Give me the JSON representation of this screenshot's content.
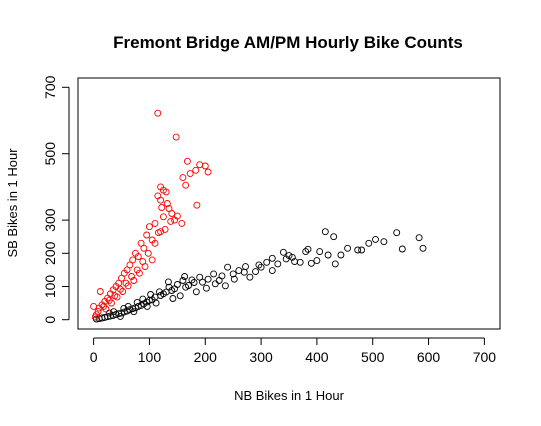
{
  "chart_data": {
    "type": "scatter",
    "title": "Fremont Bridge AM/PM Hourly Bike Counts",
    "xlabel": "NB Bikes in 1 Hour",
    "ylabel": "SB Bikes in 1 Hour",
    "xlim": [
      -28,
      728
    ],
    "ylim": [
      -28,
      728
    ],
    "xticks": [
      0,
      100,
      200,
      300,
      400,
      500,
      600,
      700
    ],
    "yticks": [
      0,
      100,
      200,
      300,
      500,
      700
    ],
    "grid": false,
    "legend": "none",
    "series": [
      {
        "color": "#000000",
        "points": [
          [
            590,
            215
          ],
          [
            583,
            247
          ],
          [
            553,
            213
          ],
          [
            543,
            262
          ],
          [
            520,
            235
          ],
          [
            505,
            242
          ],
          [
            493,
            230
          ],
          [
            480,
            210
          ],
          [
            473,
            210
          ],
          [
            455,
            215
          ],
          [
            443,
            195
          ],
          [
            433,
            168
          ],
          [
            430,
            250
          ],
          [
            420,
            195
          ],
          [
            405,
            205
          ],
          [
            400,
            178
          ],
          [
            390,
            170
          ],
          [
            380,
            205
          ],
          [
            370,
            173
          ],
          [
            360,
            175
          ],
          [
            350,
            193
          ],
          [
            345,
            183
          ],
          [
            340,
            203
          ],
          [
            330,
            168
          ],
          [
            320,
            148
          ],
          [
            310,
            173
          ],
          [
            300,
            158
          ],
          [
            290,
            145
          ],
          [
            280,
            128
          ],
          [
            270,
            143
          ],
          [
            260,
            148
          ],
          [
            250,
            138
          ],
          [
            240,
            158
          ],
          [
            230,
            132
          ],
          [
            225,
            118
          ],
          [
            215,
            138
          ],
          [
            205,
            122
          ],
          [
            195,
            113
          ],
          [
            190,
            128
          ],
          [
            180,
            112
          ],
          [
            170,
            103
          ],
          [
            165,
            98
          ],
          [
            160,
            118
          ],
          [
            150,
            106
          ],
          [
            145,
            93
          ],
          [
            140,
            88
          ],
          [
            135,
            98
          ],
          [
            130,
            83
          ],
          [
            125,
            78
          ],
          [
            120,
            73
          ],
          [
            110,
            68
          ],
          [
            105,
            60
          ],
          [
            100,
            58
          ],
          [
            95,
            53
          ],
          [
            90,
            48
          ],
          [
            85,
            43
          ],
          [
            80,
            40
          ],
          [
            75,
            36
          ],
          [
            70,
            33
          ],
          [
            65,
            30
          ],
          [
            60,
            26
          ],
          [
            55,
            23
          ],
          [
            50,
            20
          ],
          [
            45,
            18
          ],
          [
            40,
            16
          ],
          [
            35,
            13
          ],
          [
            30,
            11
          ],
          [
            25,
            9
          ],
          [
            20,
            7
          ],
          [
            15,
            5
          ],
          [
            10,
            3
          ],
          [
            5,
            2
          ],
          [
            415,
            265
          ],
          [
            384,
            212
          ],
          [
            356,
            188
          ],
          [
            320,
            185
          ],
          [
            296,
            165
          ],
          [
            272,
            160
          ],
          [
            252,
            122
          ],
          [
            236,
            102
          ],
          [
            218,
            108
          ],
          [
            202,
            95
          ],
          [
            184,
            84
          ],
          [
            176,
            120
          ],
          [
            163,
            130
          ],
          [
            155,
            72
          ],
          [
            142,
            64
          ],
          [
            134,
            114
          ],
          [
            118,
            84
          ],
          [
            112,
            50
          ],
          [
            102,
            76
          ],
          [
            96,
            40
          ],
          [
            88,
            62
          ],
          [
            78,
            52
          ],
          [
            72,
            24
          ],
          [
            62,
            40
          ],
          [
            54,
            34
          ],
          [
            48,
            10
          ],
          [
            36,
            24
          ],
          [
            28,
            20
          ]
        ]
      },
      {
        "color": "#ff0000",
        "points": [
          [
            115,
            622
          ],
          [
            148,
            550
          ],
          [
            168,
            477
          ],
          [
            190,
            467
          ],
          [
            200,
            463
          ],
          [
            183,
            450
          ],
          [
            205,
            445
          ],
          [
            173,
            440
          ],
          [
            160,
            428
          ],
          [
            165,
            405
          ],
          [
            120,
            400
          ],
          [
            125,
            390
          ],
          [
            130,
            385
          ],
          [
            115,
            373
          ],
          [
            120,
            360
          ],
          [
            185,
            345
          ],
          [
            135,
            335
          ],
          [
            140,
            320
          ],
          [
            125,
            310
          ],
          [
            145,
            300
          ],
          [
            110,
            290
          ],
          [
            100,
            280
          ],
          [
            120,
            265
          ],
          [
            95,
            255
          ],
          [
            105,
            240
          ],
          [
            85,
            230
          ],
          [
            90,
            215
          ],
          [
            75,
            200
          ],
          [
            80,
            190
          ],
          [
            70,
            180
          ],
          [
            65,
            165
          ],
          [
            60,
            150
          ],
          [
            55,
            140
          ],
          [
            50,
            125
          ],
          [
            45,
            110
          ],
          [
            40,
            100
          ],
          [
            35,
            90
          ],
          [
            30,
            78
          ],
          [
            25,
            65
          ],
          [
            20,
            55
          ],
          [
            15,
            45
          ],
          [
            10,
            35
          ],
          [
            8,
            25
          ],
          [
            5,
            15
          ],
          [
            3,
            8
          ],
          [
            12,
            85
          ],
          [
            0,
            40
          ],
          [
            110,
            230
          ],
          [
            98,
            200
          ],
          [
            88,
            175
          ],
          [
            78,
            150
          ],
          [
            68,
            130
          ],
          [
            58,
            110
          ],
          [
            48,
            92
          ],
          [
            38,
            72
          ],
          [
            28,
            58
          ],
          [
            18,
            40
          ],
          [
            105,
            180
          ],
          [
            92,
            160
          ],
          [
            82,
            140
          ],
          [
            72,
            118
          ],
          [
            62,
            102
          ],
          [
            52,
            85
          ],
          [
            42,
            68
          ],
          [
            32,
            50
          ],
          [
            22,
            32
          ],
          [
            116,
            262
          ],
          [
            128,
            272
          ],
          [
            138,
            296
          ],
          [
            150,
            312
          ],
          [
            158,
            290
          ],
          [
            122,
            338
          ],
          [
            132,
            350
          ]
        ]
      }
    ]
  }
}
